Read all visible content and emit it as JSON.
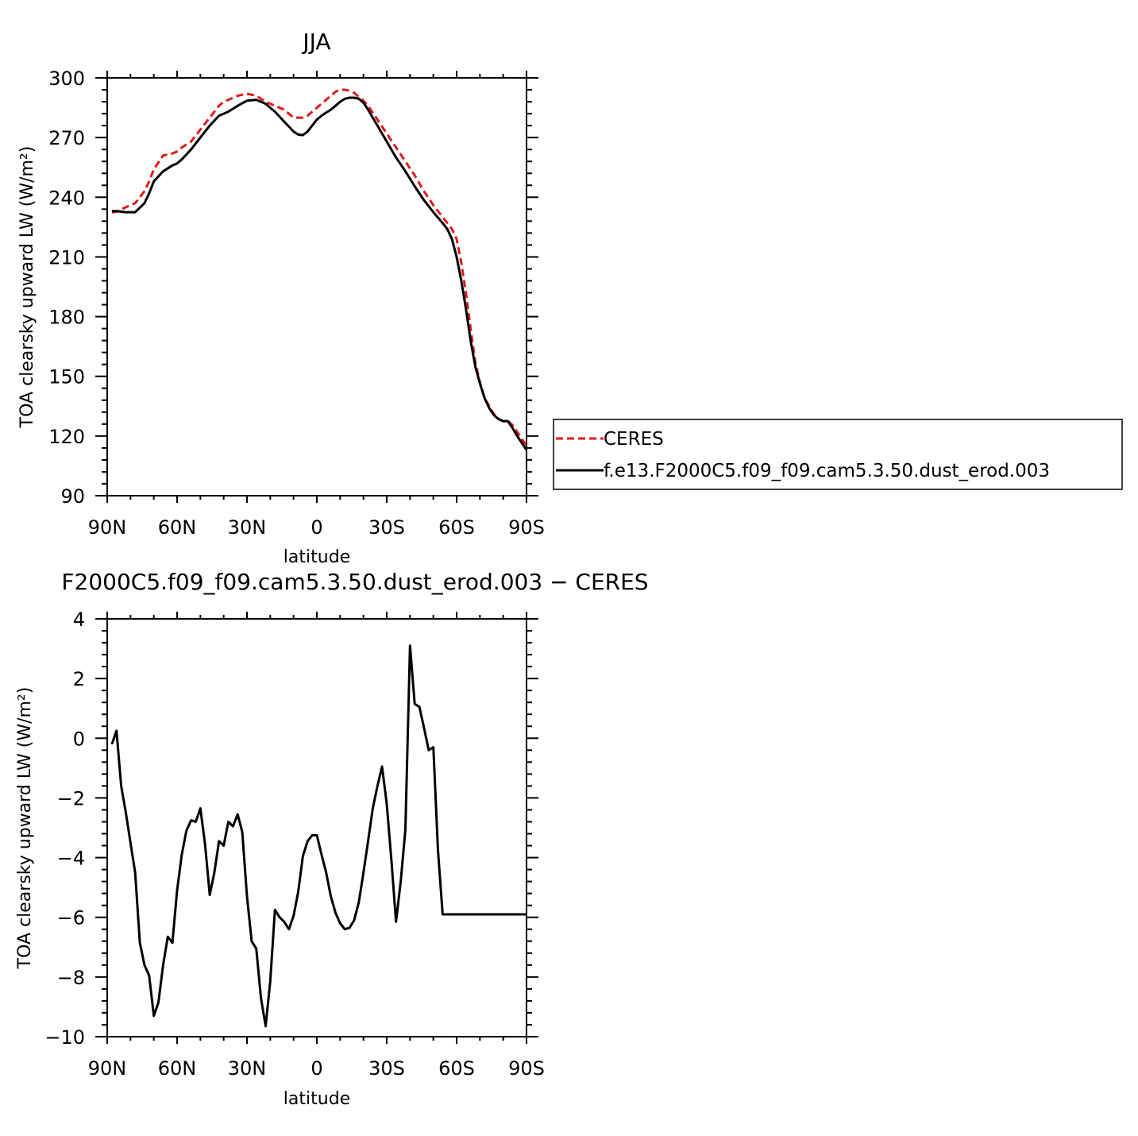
{
  "chart_data": [
    {
      "type": "line",
      "title": "JJA",
      "xlabel": "latitude",
      "ylabel": "TOA clearsky upward LW (W/m²)",
      "xlim": [
        -90,
        90
      ],
      "ylim": [
        90,
        300
      ],
      "x_ticks": [
        -90,
        -60,
        -30,
        0,
        30,
        60,
        90
      ],
      "x_tick_labels": [
        "90N",
        "60N",
        "30N",
        "0",
        "30S",
        "60S",
        "90S"
      ],
      "y_ticks": [
        90,
        120,
        150,
        180,
        210,
        240,
        270,
        300
      ],
      "y_tick_labels": [
        "90",
        "120",
        "150",
        "180",
        "210",
        "240",
        "270",
        "300"
      ],
      "grid": false,
      "legend_position": "right",
      "x": [
        -88,
        -86,
        -82,
        -78,
        -74,
        -72,
        -70,
        -66,
        -62,
        -60,
        -58,
        -54,
        -50,
        -46,
        -42,
        -40,
        -38,
        -34,
        -30,
        -26,
        -22,
        -18,
        -14,
        -10,
        -8,
        -6,
        -4,
        -2,
        0,
        2,
        4,
        6,
        8,
        10,
        12,
        14,
        16,
        18,
        20,
        22,
        26,
        30,
        34,
        38,
        42,
        46,
        50,
        54,
        56,
        58,
        60,
        62,
        64,
        66,
        68,
        70,
        72,
        74,
        76,
        78,
        80,
        82,
        84,
        86,
        88,
        90
      ],
      "series": [
        {
          "name": "CERES",
          "color": "#e31a1c",
          "dash": true,
          "values": [
            232.5,
            232.7,
            235,
            237,
            243,
            248,
            254,
            261,
            262,
            263,
            265,
            268,
            274,
            280,
            286,
            288,
            289,
            291,
            292,
            291,
            288,
            286,
            284,
            280,
            280,
            280,
            281,
            283,
            285,
            287,
            289,
            291,
            293,
            294,
            294,
            293.5,
            292.5,
            290.5,
            288.5,
            286,
            279,
            272,
            265,
            258,
            251,
            243,
            236,
            230,
            227,
            224,
            219,
            207,
            192,
            174,
            157,
            147,
            139,
            135,
            131,
            128.5,
            127.5,
            127.5,
            125.5,
            122,
            118.5,
            115
          ]
        },
        {
          "name": "f.e13.F2000C5.f09_f09.cam5.3.50.dust_erod.003",
          "color": "#000000",
          "dash": false,
          "values": [
            233,
            233,
            232.5,
            232.5,
            237,
            242,
            248,
            253,
            256,
            257,
            259,
            264,
            270,
            276,
            281,
            282,
            283,
            286,
            288.5,
            289,
            287,
            283,
            278,
            273,
            271.5,
            271.2,
            273,
            276,
            279,
            281,
            282.5,
            284,
            286,
            288,
            289.5,
            290,
            290,
            289.5,
            287.5,
            284,
            276,
            268,
            260,
            253,
            245.5,
            238.5,
            232.5,
            227,
            224,
            219,
            210,
            198,
            184,
            168,
            155,
            146.5,
            139,
            134,
            130.5,
            128.5,
            127.5,
            127.5,
            124,
            120,
            116.5,
            113
          ]
        }
      ]
    },
    {
      "type": "line",
      "title": "F2000C5.f09_f09.cam5.3.50.dust_erod.003 − CERES",
      "xlabel": "latitude",
      "ylabel": "TOA clearsky upward LW (W/m²)",
      "xlim": [
        -90,
        90
      ],
      "ylim": [
        -10,
        4
      ],
      "x_ticks": [
        -90,
        -60,
        -30,
        0,
        30,
        60,
        90
      ],
      "x_tick_labels": [
        "90N",
        "60N",
        "30N",
        "0",
        "30S",
        "60S",
        "90S"
      ],
      "y_ticks": [
        -10,
        -8,
        -6,
        -4,
        -2,
        0,
        2,
        4
      ],
      "y_tick_labels": [
        "−10",
        "−8",
        "−6",
        "−4",
        "−2",
        "0",
        "2",
        "4"
      ],
      "grid": false,
      "x": [
        -88,
        -86,
        -84,
        -82,
        -80,
        -78,
        -76,
        -74,
        -72,
        -70,
        -68,
        -66,
        -64,
        -62,
        -60,
        -58,
        -56,
        -54,
        -52,
        -50,
        -48,
        -46,
        -44,
        -42,
        -40,
        -38,
        -36,
        -34,
        -32,
        -30,
        -28,
        -26,
        -24,
        -22,
        -20,
        -18,
        -16,
        -14,
        -12,
        -10,
        -8,
        -6,
        -4,
        -2,
        0,
        2,
        4,
        6,
        8,
        10,
        12,
        14,
        16,
        18,
        20,
        22,
        24,
        26,
        28,
        30,
        32,
        34,
        36,
        38,
        40,
        42,
        44,
        46,
        48,
        50,
        52,
        54,
        56,
        58,
        60,
        62,
        64,
        66,
        68,
        70,
        72,
        74,
        76,
        78,
        80,
        82,
        84,
        86,
        88,
        90
      ],
      "series": [
        {
          "name": "",
          "color": "#000000",
          "dash": false,
          "values": [
            -0.2,
            0.25,
            -1.6,
            -2.5,
            -3.5,
            -4.5,
            -6.85,
            -7.6,
            -7.95,
            -9.3,
            -8.85,
            -7.6,
            -6.65,
            -6.85,
            -5.1,
            -3.9,
            -3.1,
            -2.75,
            -2.8,
            -2.35,
            -3.55,
            -5.25,
            -4.5,
            -3.45,
            -3.6,
            -2.8,
            -2.95,
            -2.55,
            -3.15,
            -5.3,
            -6.8,
            -7.05,
            -8.7,
            -9.65,
            -8.15,
            -5.75,
            -6.0,
            -6.15,
            -6.4,
            -5.95,
            -5.15,
            -3.95,
            -3.45,
            -3.25,
            -3.25,
            -3.9,
            -4.5,
            -5.3,
            -5.85,
            -6.2,
            -6.4,
            -6.35,
            -6.1,
            -5.5,
            -4.5,
            -3.45,
            -2.35,
            -1.6,
            -0.95,
            -2.2,
            -4.1,
            -6.15,
            -4.8,
            -3.05,
            3.1,
            1.15,
            1.05,
            0.35,
            -0.4,
            -0.3,
            -3.75,
            -5.9,
            -5.9,
            -5.9,
            -5.9,
            -5.9,
            -5.9,
            -5.9,
            -5.9,
            -5.9,
            -5.9,
            -5.9,
            -5.9,
            -5.9,
            -5.9,
            -5.9,
            -5.9,
            -5.9,
            -5.9,
            -5.9
          ]
        }
      ]
    }
  ]
}
